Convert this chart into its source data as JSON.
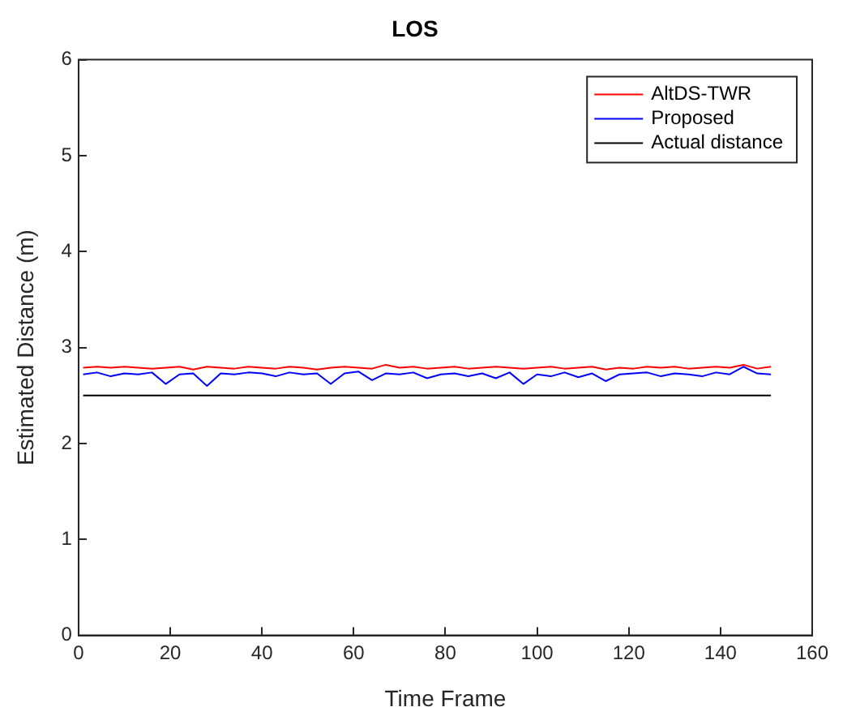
{
  "chart_data": {
    "type": "line",
    "title": "LOS",
    "xlabel": "Time Frame",
    "ylabel": "Estimated Distance (m)",
    "xlim": [
      0,
      160
    ],
    "xticks": [
      0,
      20,
      40,
      60,
      80,
      100,
      120,
      140,
      160
    ],
    "ylim": [
      0,
      6
    ],
    "yticks": [
      0,
      1,
      2,
      3,
      4,
      5,
      6
    ],
    "grid": false,
    "legend": "top right",
    "series": [
      {
        "name": "AltDS-TWR",
        "color": "#ff0000",
        "x": [
          1,
          4,
          7,
          10,
          13,
          16,
          19,
          22,
          25,
          28,
          31,
          34,
          37,
          40,
          43,
          46,
          49,
          52,
          55,
          58,
          61,
          64,
          67,
          70,
          73,
          76,
          79,
          82,
          85,
          88,
          91,
          94,
          97,
          100,
          103,
          106,
          109,
          112,
          115,
          118,
          121,
          124,
          127,
          130,
          133,
          136,
          139,
          142,
          145,
          148,
          151
        ],
        "values": [
          2.79,
          2.8,
          2.79,
          2.8,
          2.79,
          2.78,
          2.79,
          2.8,
          2.77,
          2.8,
          2.79,
          2.78,
          2.8,
          2.79,
          2.78,
          2.8,
          2.79,
          2.77,
          2.79,
          2.8,
          2.79,
          2.78,
          2.82,
          2.79,
          2.8,
          2.78,
          2.79,
          2.8,
          2.78,
          2.79,
          2.8,
          2.79,
          2.78,
          2.79,
          2.8,
          2.78,
          2.79,
          2.8,
          2.77,
          2.79,
          2.78,
          2.8,
          2.79,
          2.8,
          2.78,
          2.79,
          2.8,
          2.79,
          2.82,
          2.78,
          2.8
        ]
      },
      {
        "name": "Proposed",
        "color": "#0000ff",
        "x": [
          1,
          4,
          7,
          10,
          13,
          16,
          19,
          22,
          25,
          28,
          31,
          34,
          37,
          40,
          43,
          46,
          49,
          52,
          55,
          58,
          61,
          64,
          67,
          70,
          73,
          76,
          79,
          82,
          85,
          88,
          91,
          94,
          97,
          100,
          103,
          106,
          109,
          112,
          115,
          118,
          121,
          124,
          127,
          130,
          133,
          136,
          139,
          142,
          145,
          148,
          151
        ],
        "values": [
          2.72,
          2.74,
          2.7,
          2.73,
          2.72,
          2.74,
          2.62,
          2.72,
          2.73,
          2.6,
          2.73,
          2.72,
          2.74,
          2.73,
          2.7,
          2.74,
          2.72,
          2.73,
          2.62,
          2.73,
          2.75,
          2.66,
          2.73,
          2.72,
          2.74,
          2.68,
          2.72,
          2.73,
          2.7,
          2.73,
          2.68,
          2.74,
          2.62,
          2.72,
          2.7,
          2.74,
          2.69,
          2.73,
          2.65,
          2.72,
          2.73,
          2.74,
          2.7,
          2.73,
          2.72,
          2.7,
          2.74,
          2.72,
          2.8,
          2.73,
          2.72
        ]
      },
      {
        "name": "Actual distance",
        "color": "#000000",
        "x": [
          1,
          151
        ],
        "values": [
          2.5,
          2.5
        ]
      }
    ]
  }
}
